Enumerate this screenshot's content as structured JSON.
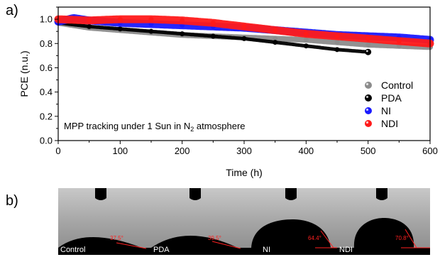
{
  "panel_a_label": "a)",
  "panel_b_label": "b)",
  "chart_data": {
    "type": "scatter",
    "xlabel": "Time (h)",
    "ylabel": "PCE (n.u.)",
    "xlim": [
      0,
      600
    ],
    "ylim": [
      0.0,
      1.1
    ],
    "xticks": [
      0,
      100,
      200,
      300,
      400,
      500,
      600
    ],
    "yticks": [
      0.0,
      0.2,
      0.4,
      0.6,
      0.8,
      1.0
    ],
    "xtick_labels": [
      "0",
      "100",
      "200",
      "300",
      "400",
      "500",
      "600"
    ],
    "ytick_labels": [
      "0.0",
      "0.2",
      "0.4",
      "0.6",
      "0.8",
      "1.0"
    ],
    "grid": false,
    "legend_position": "bottom-right",
    "annotation": {
      "text_before": "MPP tracking under 1 Sun in N",
      "subscript": "2",
      "text_after": " atmosphere"
    },
    "series": [
      {
        "name": "Control",
        "color": "#8c8c8c",
        "x": [
          0,
          50,
          100,
          150,
          200,
          250,
          300,
          350,
          400,
          450,
          500,
          550,
          600
        ],
        "y": [
          0.97,
          0.93,
          0.91,
          0.89,
          0.87,
          0.86,
          0.85,
          0.84,
          0.83,
          0.81,
          0.79,
          0.78,
          0.77
        ]
      },
      {
        "name": "PDA",
        "color": "#000000",
        "x": [
          0,
          50,
          100,
          150,
          200,
          250,
          300,
          350,
          400,
          450,
          500
        ],
        "y": [
          0.97,
          0.94,
          0.92,
          0.9,
          0.88,
          0.86,
          0.84,
          0.81,
          0.78,
          0.75,
          0.73
        ]
      },
      {
        "name": "NI",
        "color": "#1a1aff",
        "x": [
          0,
          25,
          50,
          100,
          150,
          200,
          250,
          300,
          350,
          400,
          450,
          500,
          550,
          600
        ],
        "y": [
          0.98,
          1.01,
          0.99,
          0.97,
          0.96,
          0.95,
          0.94,
          0.93,
          0.91,
          0.89,
          0.87,
          0.86,
          0.85,
          0.83
        ]
      },
      {
        "name": "NDI",
        "color": "#ff1a1a",
        "x": [
          0,
          50,
          100,
          150,
          200,
          250,
          300,
          350,
          400,
          450,
          500,
          550,
          600
        ],
        "y": [
          1.0,
          0.99,
          1.0,
          1.0,
          0.99,
          0.97,
          0.94,
          0.91,
          0.88,
          0.86,
          0.84,
          0.82,
          0.8
        ]
      }
    ]
  },
  "contact_angles": [
    {
      "label": "Control",
      "angle": "37.5°"
    },
    {
      "label": "PDA",
      "angle": "39.5°"
    },
    {
      "label": "NI",
      "angle": "64.4°"
    },
    {
      "label": "NDI",
      "angle": "70.8°"
    }
  ]
}
